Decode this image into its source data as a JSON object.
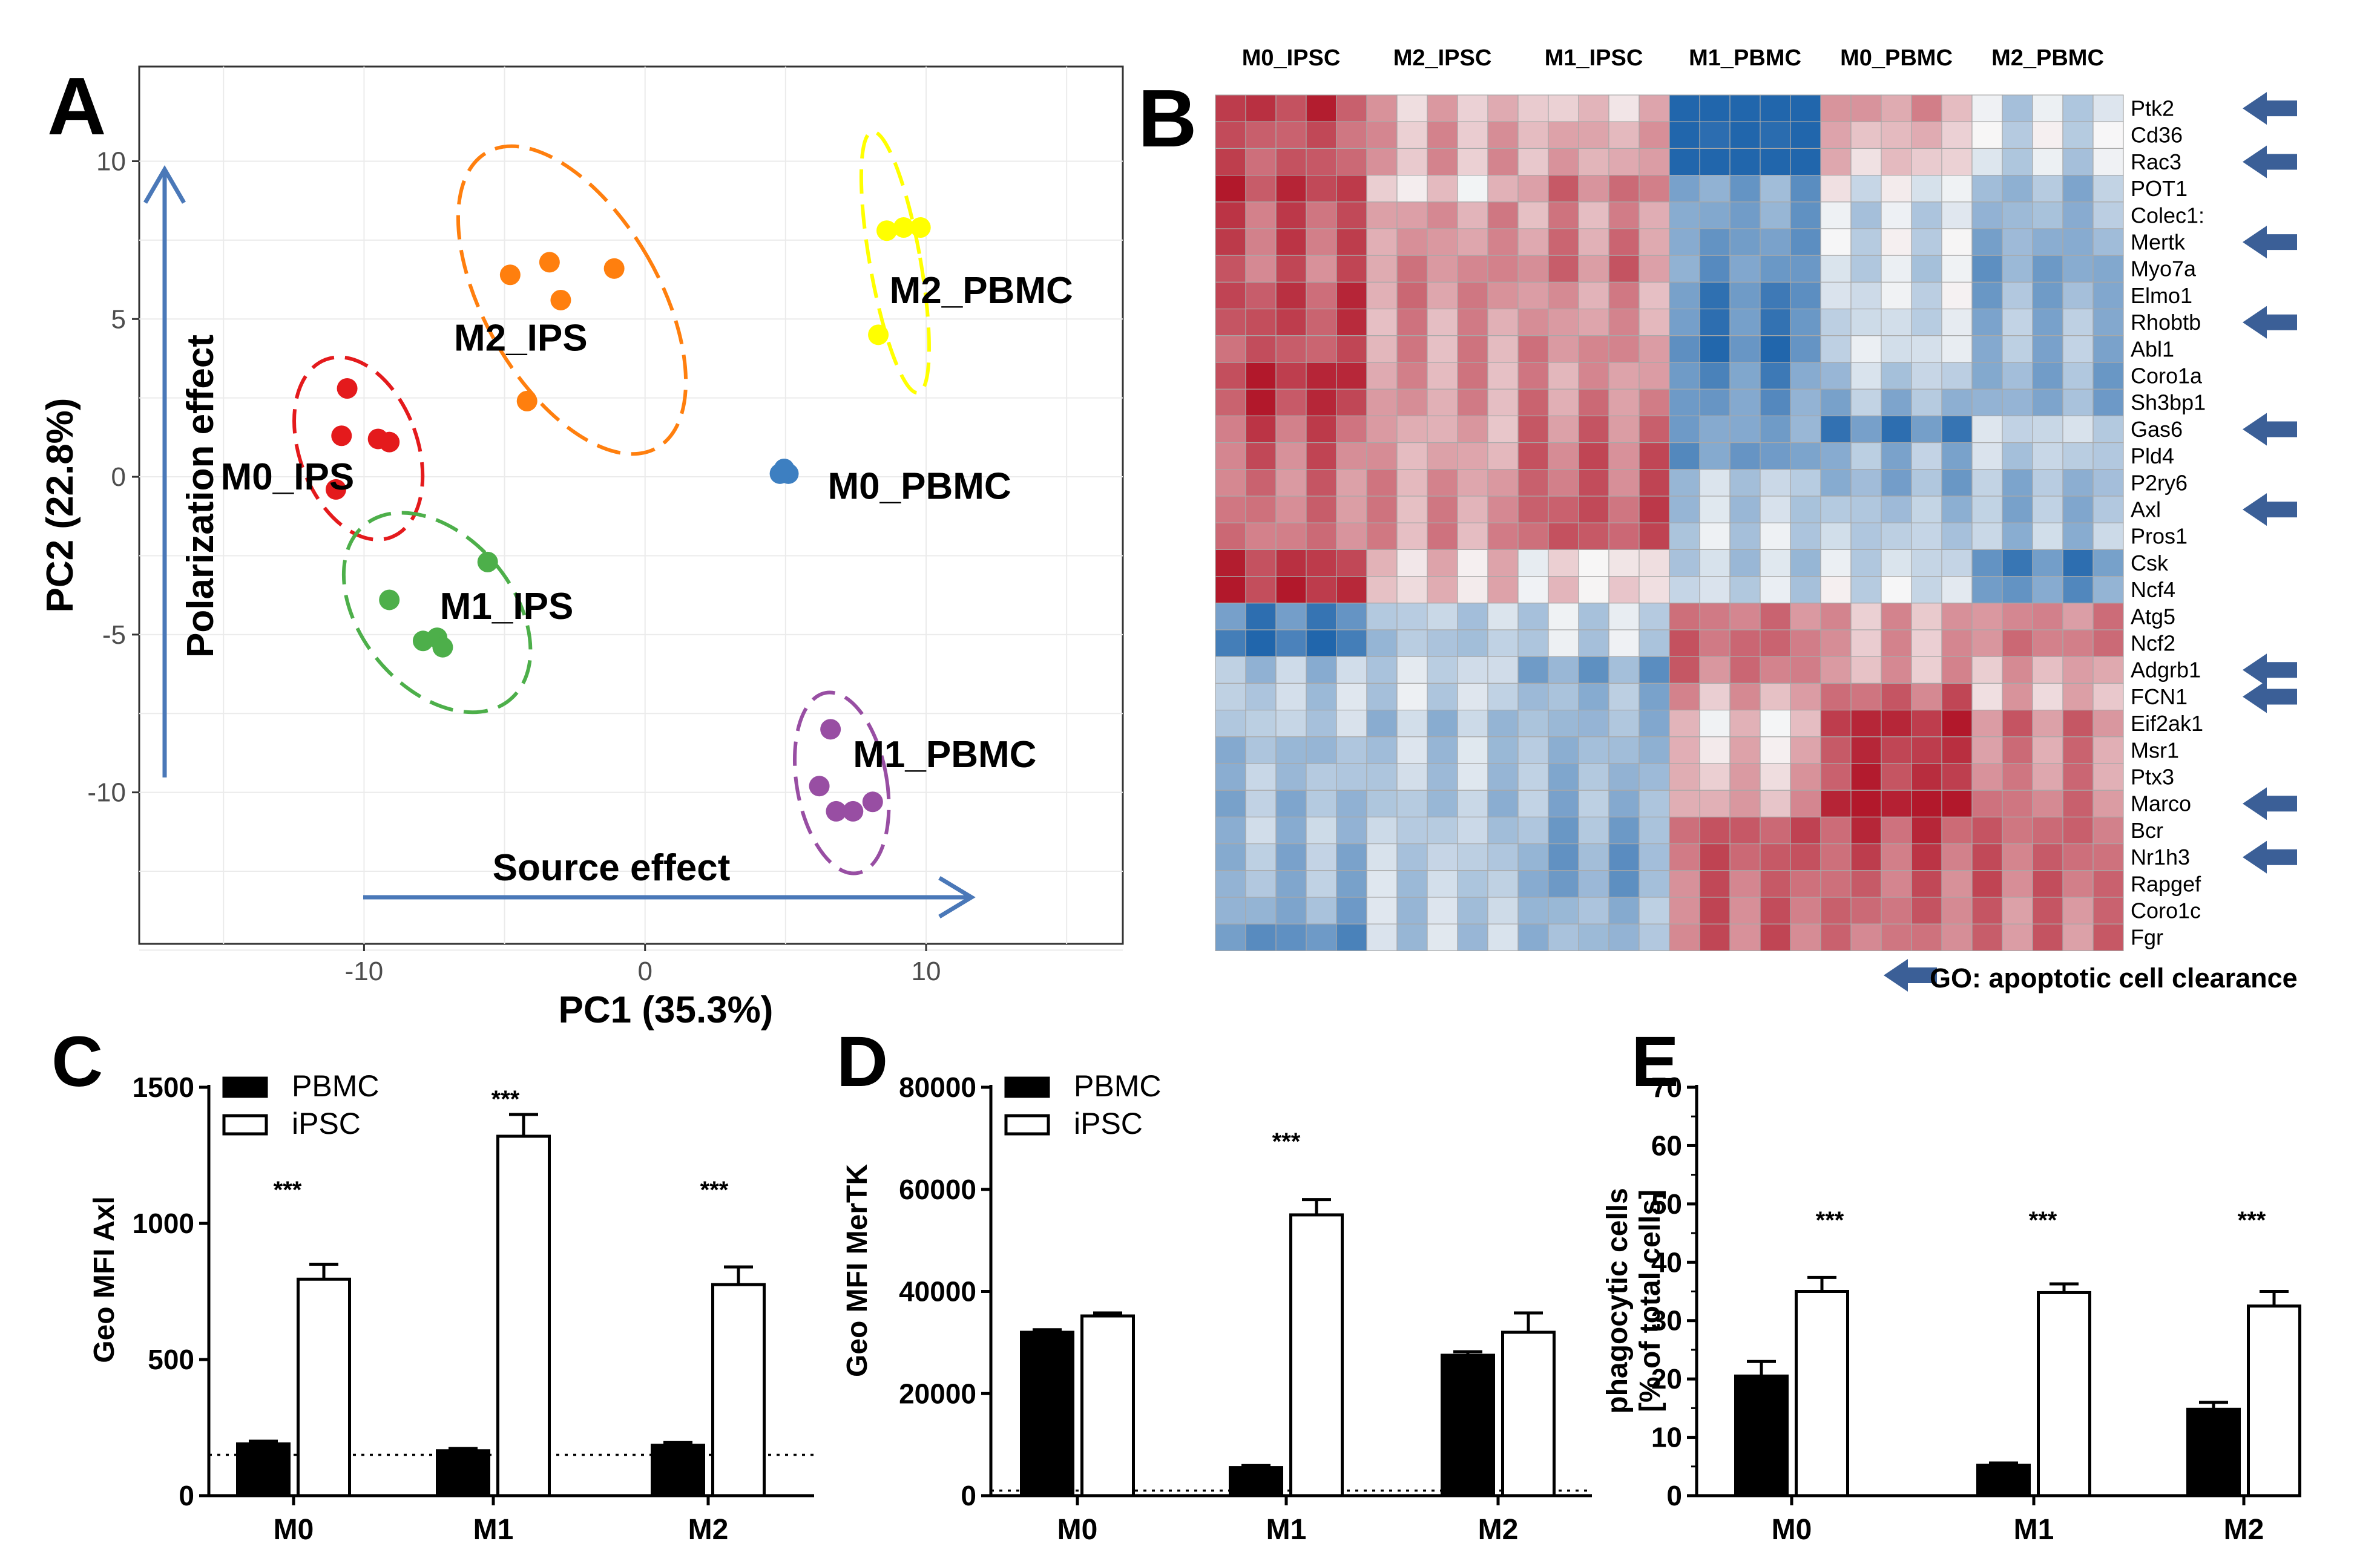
{
  "panel_letters": {
    "A": "A",
    "B": "B",
    "C": "C",
    "D": "D",
    "E": "E"
  },
  "colors": {
    "M0_IPS": "#e41a1c",
    "M2_IPS": "#ff7f0e",
    "M1_IPS": "#4daf4a",
    "M2_PBMC": "#ffff00",
    "M0_PBMC": "#3d7fc1",
    "M1_PBMC": "#984ea3",
    "arrow": "#4a78b8",
    "heat_low": "#2166ac",
    "heat_mid": "#f7f7f7",
    "heat_high": "#b2182b",
    "go_arrow": "#3b5f97"
  },
  "chart_data": [
    {
      "panel": "A",
      "type": "scatter",
      "xlabel": "PC1 (35.3%)",
      "ylabel": "PC2 (22.8%)",
      "xlim": [
        -18,
        17
      ],
      "ylim": [
        -14.8,
        13
      ],
      "xticks": [
        "-10",
        "0",
        "10"
      ],
      "xtick_values": [
        -10,
        0,
        10
      ],
      "yticks": [
        "10",
        "5",
        "0",
        "-5",
        "-10"
      ],
      "ytick_values": [
        10,
        5,
        0,
        -5,
        -10
      ],
      "grid": true,
      "annotations": {
        "polarization": "Polarization effect",
        "source": "Source effect"
      },
      "series": [
        {
          "name": "M0_IPS",
          "points": [
            [
              -10.6,
              2.8
            ],
            [
              -10.8,
              1.3
            ],
            [
              -9.5,
              1.2
            ],
            [
              -9.1,
              1.1
            ],
            [
              -11.0,
              -0.4
            ]
          ],
          "ellipse": {
            "cx": -10.2,
            "cy": 0.9,
            "rx": 2.1,
            "ry": 3.0,
            "angle": -20
          }
        },
        {
          "name": "M2_IPS",
          "points": [
            [
              -4.8,
              6.4
            ],
            [
              -3.4,
              6.8
            ],
            [
              -3.0,
              5.6
            ],
            [
              -1.1,
              6.6
            ],
            [
              -4.2,
              2.4
            ]
          ],
          "ellipse": {
            "cx": -2.6,
            "cy": 5.6,
            "rx": 3.1,
            "ry": 5.4,
            "angle": -30
          }
        },
        {
          "name": "M1_IPS",
          "points": [
            [
              -5.6,
              -2.7
            ],
            [
              -9.1,
              -3.9
            ],
            [
              -7.9,
              -5.2
            ],
            [
              -7.4,
              -5.1
            ],
            [
              -7.2,
              -5.4
            ]
          ],
          "ellipse": {
            "cx": -7.4,
            "cy": -4.3,
            "rx": 2.7,
            "ry": 3.6,
            "angle": -40
          }
        },
        {
          "name": "M2_PBMC",
          "points": [
            [
              8.6,
              7.8
            ],
            [
              9.2,
              7.9
            ],
            [
              9.8,
              7.9
            ],
            [
              8.3,
              4.5
            ]
          ],
          "ellipse": {
            "cx": 8.9,
            "cy": 6.8,
            "rx": 0.9,
            "ry": 4.2,
            "angle": -10
          }
        },
        {
          "name": "M0_PBMC",
          "points": [
            [
              4.8,
              0.1
            ],
            [
              5.1,
              0.1
            ],
            [
              4.95,
              0.25
            ]
          ],
          "ellipse": null
        },
        {
          "name": "M1_PBMC",
          "points": [
            [
              6.6,
              -8.0
            ],
            [
              6.2,
              -9.8
            ],
            [
              6.8,
              -10.6
            ],
            [
              7.4,
              -10.6
            ],
            [
              8.1,
              -10.3
            ]
          ],
          "ellipse": {
            "cx": 7.0,
            "cy": -9.7,
            "rx": 1.6,
            "ry": 2.9,
            "angle": -10
          }
        }
      ]
    },
    {
      "panel": "B",
      "type": "heatmap",
      "groups": [
        "M0_IPSC",
        "M2_IPSC",
        "M1_IPSC",
        "M1_PBMC",
        "M0_PBMC",
        "M2_PBMC"
      ],
      "columns_per_group": 5,
      "rows": [
        "Ptk2",
        "Cd36",
        "Rac3",
        "POT1",
        "Colec1:",
        "Mertk",
        "Myo7a",
        "Elmo1",
        "Rhobtb",
        "Abl1",
        "Coro1a",
        "Sh3bp1",
        "Gas6",
        "Pld4",
        "P2ry6",
        "Axl",
        "Pros1",
        "Csk",
        "Ncf4",
        "Atg5",
        "Ncf2",
        "Adgrb1",
        "FCN1",
        "Eif2ak1",
        "Msr1",
        "Ptx3",
        "Marco",
        "Bcr",
        "Nr1h3",
        "Rapgef",
        "Coro1c",
        "Fgr"
      ],
      "go_rows": [
        "Ptk2",
        "Rac3",
        "Mertk",
        "Rhobtb",
        "Gas6",
        "Axl",
        "Adgrb1",
        "FCN1",
        "Marco",
        "Nr1h3"
      ],
      "legend": "GO: apoptotic cell clearance",
      "scale": "row z-score, range [-2, 2]"
    },
    {
      "panel": "C",
      "type": "bar",
      "categories": [
        "M0",
        "M1",
        "M2"
      ],
      "ylabel": "Geo MFI Axl",
      "ylim": [
        0,
        1500
      ],
      "yticks": [
        "1500",
        "1000",
        "500",
        "0"
      ],
      "ytick_values": [
        1500,
        1000,
        500,
        0
      ],
      "baseline": 150,
      "legend": [
        "PBMC",
        "iPSC"
      ],
      "series": [
        {
          "name": "PBMC",
          "values": [
            190,
            165,
            185
          ],
          "errors": [
            10,
            8,
            10
          ]
        },
        {
          "name": "iPSC",
          "values": [
            795,
            1320,
            775
          ],
          "errors": [
            55,
            80,
            65
          ]
        }
      ],
      "significance": [
        "***",
        "***",
        "***"
      ]
    },
    {
      "panel": "D",
      "type": "bar",
      "categories": [
        "M0",
        "M1",
        "M2"
      ],
      "ylabel": "Geo MFI  MerTK",
      "ylim": [
        0,
        80000
      ],
      "yticks": [
        "80000",
        "60000",
        "40000",
        "20000",
        "0"
      ],
      "ytick_values": [
        80000,
        60000,
        40000,
        20000,
        0
      ],
      "baseline": 1000,
      "legend": [
        "PBMC",
        "iPSC"
      ],
      "series": [
        {
          "name": "PBMC",
          "values": [
            32000,
            5500,
            27500
          ],
          "errors": [
            500,
            400,
            700
          ]
        },
        {
          "name": "iPSC",
          "values": [
            35200,
            55000,
            32000
          ],
          "errors": [
            600,
            3000,
            3800
          ]
        }
      ],
      "significance": [
        "",
        "***",
        ""
      ]
    },
    {
      "panel": "E",
      "type": "bar",
      "categories": [
        "M0",
        "M1",
        "M2"
      ],
      "ylabel": "phagocytic cells",
      "ylabel2": "[% of total cells]",
      "ylim": [
        0,
        70
      ],
      "yticks": [
        "70",
        "60",
        "50",
        "40",
        "30",
        "20",
        "10",
        "0"
      ],
      "ytick_values": [
        70,
        60,
        50,
        40,
        30,
        20,
        10,
        0
      ],
      "legend": [],
      "series": [
        {
          "name": "PBMC",
          "values": [
            20.5,
            5.2,
            14.8
          ],
          "errors": [
            2.5,
            0.4,
            1.2
          ]
        },
        {
          "name": "iPSC",
          "values": [
            35,
            34.8,
            32.5
          ],
          "errors": [
            2.4,
            1.5,
            2.5
          ]
        }
      ],
      "significance": [
        "***",
        "***",
        "***"
      ]
    }
  ]
}
